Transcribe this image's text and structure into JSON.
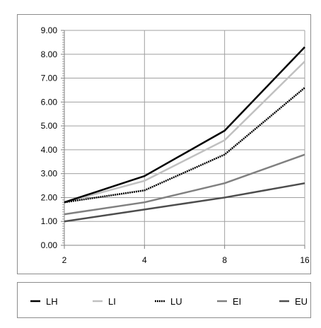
{
  "chart_data": {
    "type": "line",
    "x": [
      "2",
      "4",
      "8",
      "16"
    ],
    "ylim": [
      0,
      9
    ],
    "yticks": [
      "0.00",
      "1.00",
      "2.00",
      "3.00",
      "4.00",
      "5.00",
      "6.00",
      "7.00",
      "8.00",
      "9.00"
    ],
    "grid": true,
    "legend_position": "bottom",
    "series": [
      {
        "name": "LH",
        "values": [
          1.8,
          2.9,
          4.8,
          8.3
        ],
        "color": "#000000",
        "dash": ""
      },
      {
        "name": "LI",
        "values": [
          1.8,
          2.7,
          4.4,
          7.7
        ],
        "color": "#c0c0c0",
        "dash": ""
      },
      {
        "name": "LU",
        "values": [
          1.8,
          2.3,
          3.8,
          6.6
        ],
        "color": "#000000",
        "dash": "2,1"
      },
      {
        "name": "EI",
        "values": [
          1.3,
          1.8,
          2.6,
          3.8
        ],
        "color": "#808080",
        "dash": ""
      },
      {
        "name": "EU",
        "values": [
          1.0,
          1.5,
          2.0,
          2.6
        ],
        "color": "#4d4d4d",
        "dash": ""
      }
    ]
  }
}
